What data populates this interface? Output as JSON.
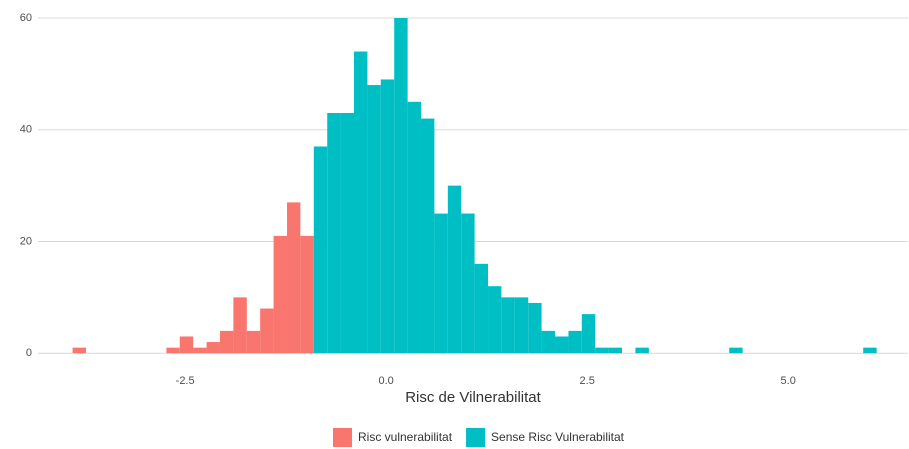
{
  "chart_data": {
    "type": "histogram",
    "x_label": "Risc de Vilnerabilitat",
    "bins": [
      -3.9,
      -3.733,
      -3.567,
      -3.4,
      -3.233,
      -3.067,
      -2.9,
      -2.733,
      -2.567,
      -2.4,
      -2.233,
      -2.067,
      -1.9,
      -1.733,
      -1.567,
      -1.4,
      -1.233,
      -1.067,
      -0.9,
      -0.733,
      -0.567,
      -0.4,
      -0.233,
      -0.067,
      0.1,
      0.267,
      0.433,
      0.6,
      0.767,
      0.933,
      1.1,
      1.267,
      1.433,
      1.6,
      1.767,
      1.933,
      2.1,
      2.267,
      2.433,
      2.6,
      2.767,
      2.933,
      3.1,
      3.267,
      3.433,
      3.6,
      3.767,
      3.933,
      4.1,
      4.267,
      4.433,
      4.6,
      4.767,
      4.933,
      5.1,
      5.267,
      5.433,
      5.6,
      5.767,
      5.933,
      6.1
    ],
    "series": [
      {
        "name": "Risc vulnerabilitat",
        "color": "#f8766d",
        "values": [
          1,
          0,
          0,
          0,
          0,
          0,
          0,
          1,
          3,
          1,
          2,
          4,
          10,
          4,
          8,
          21,
          27,
          21,
          0,
          0,
          0,
          0,
          0,
          0,
          0,
          0,
          0,
          0,
          0,
          0,
          0,
          0,
          0,
          0,
          0,
          0,
          0,
          0,
          0,
          0,
          0,
          0,
          0,
          0,
          0,
          0,
          0,
          0,
          0,
          0,
          0,
          0,
          0,
          0,
          0,
          0,
          0,
          0,
          0,
          0
        ]
      },
      {
        "name": "Sense Risc Vulnerabilitat",
        "color": "#00bfc4",
        "values": [
          0,
          0,
          0,
          0,
          0,
          0,
          0,
          0,
          0,
          0,
          0,
          0,
          0,
          0,
          0,
          0,
          0,
          0,
          37,
          43,
          43,
          54,
          48,
          49,
          60,
          45,
          42,
          25,
          30,
          25,
          16,
          12,
          10,
          10,
          9,
          4,
          3,
          4,
          7,
          1,
          1,
          0,
          1,
          0,
          0,
          0,
          0,
          0,
          0,
          1,
          0,
          0,
          0,
          0,
          0,
          0,
          0,
          0,
          0,
          1
        ]
      }
    ],
    "xlim": [
      -4.33,
      6.49
    ],
    "xticks": [
      {
        "value": -2.5,
        "label": "-2.5"
      },
      {
        "value": 0,
        "label": "0.0"
      },
      {
        "value": 2.5,
        "label": "2.5"
      },
      {
        "value": 5,
        "label": "5.0"
      }
    ],
    "ylim": [
      -3,
      60
    ],
    "yticks": [
      0,
      20,
      40,
      60
    ],
    "grid": true,
    "legend": "bottom"
  }
}
